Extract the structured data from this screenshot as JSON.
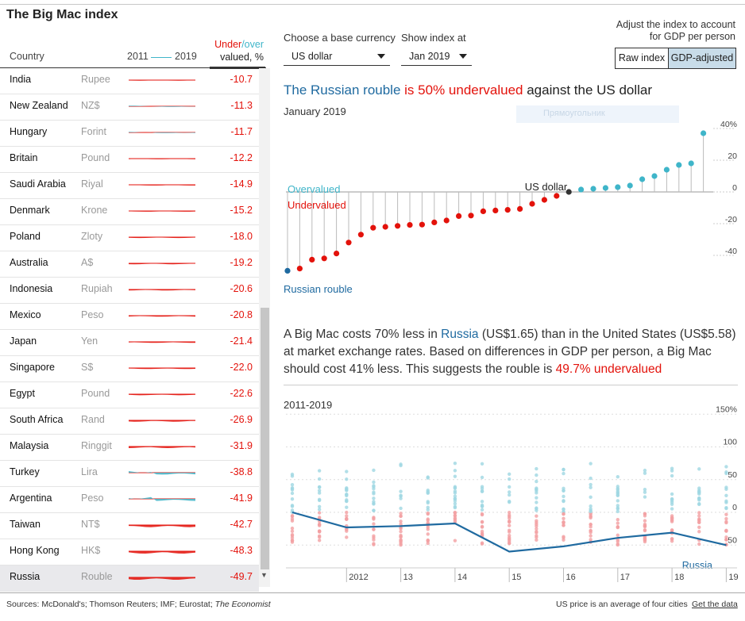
{
  "title": "The Big Mac index",
  "table": {
    "col_country": "Country",
    "col_years": [
      "2011",
      "2019"
    ],
    "col_under": "Under",
    "col_slash": "/",
    "col_over": "over",
    "col_valued": "valued, %",
    "rows": [
      {
        "country": "India",
        "currency": "Rupee",
        "value": "-10.7"
      },
      {
        "country": "New Zealand",
        "currency": "NZ$",
        "value": "-11.3"
      },
      {
        "country": "Hungary",
        "currency": "Forint",
        "value": "-11.7"
      },
      {
        "country": "Britain",
        "currency": "Pound",
        "value": "-12.2"
      },
      {
        "country": "Saudi Arabia",
        "currency": "Riyal",
        "value": "-14.9"
      },
      {
        "country": "Denmark",
        "currency": "Krone",
        "value": "-15.2"
      },
      {
        "country": "Poland",
        "currency": "Zloty",
        "value": "-18.0"
      },
      {
        "country": "Australia",
        "currency": "A$",
        "value": "-19.2"
      },
      {
        "country": "Indonesia",
        "currency": "Rupiah",
        "value": "-20.6"
      },
      {
        "country": "Mexico",
        "currency": "Peso",
        "value": "-20.8"
      },
      {
        "country": "Japan",
        "currency": "Yen",
        "value": "-21.4"
      },
      {
        "country": "Singapore",
        "currency": "S$",
        "value": "-22.0"
      },
      {
        "country": "Egypt",
        "currency": "Pound",
        "value": "-22.6"
      },
      {
        "country": "South Africa",
        "currency": "Rand",
        "value": "-26.9"
      },
      {
        "country": "Malaysia",
        "currency": "Ringgit",
        "value": "-31.9"
      },
      {
        "country": "Turkey",
        "currency": "Lira",
        "value": "-38.8"
      },
      {
        "country": "Argentina",
        "currency": "Peso",
        "value": "-41.9"
      },
      {
        "country": "Taiwan",
        "currency": "NT$",
        "value": "-42.7"
      },
      {
        "country": "Hong Kong",
        "currency": "HK$",
        "value": "-48.3"
      },
      {
        "country": "Russia",
        "currency": "Rouble",
        "value": "-49.7"
      }
    ]
  },
  "controls": {
    "base_currency_label": "Choose a base currency",
    "base_currency_value": "US dollar",
    "show_index_label": "Show index at",
    "show_index_value": "Jan 2019",
    "adjust_label": "Adjust the index to account for GDP per person",
    "toggle_raw": "Raw index",
    "toggle_gdp": "GDP-adjusted"
  },
  "headline": {
    "part1": "The Russian rouble",
    "part2": "is 50% undervalued",
    "part3": "against the US dollar"
  },
  "subdate": "January 2019",
  "ghost_label": "Прямоугольник",
  "description": {
    "p1": "A Big Mac costs 70% less in",
    "russia": "Russia",
    "p2": "(US$1.65) than in the United States (US$5.58) at market exchange rates. Based on differences in GDP per person, a Big Mac should cost 41% less. This suggests the rouble is",
    "red": "49.7% undervalued"
  },
  "range_label": "2011-2019",
  "footer": {
    "sources": "Sources: McDonald's; Thomson Reuters; IMF; Eurostat;",
    "economist": "The Economist",
    "note": "US price is an average of four cities",
    "get_data": "Get the data"
  },
  "colors": {
    "over": "#3fb5c9",
    "under": "#e3120b",
    "russia": "#1f6aa0",
    "base": "#333333"
  },
  "chart_data": [
    {
      "type": "scatter",
      "labels": {
        "overvalued": "Overvalued",
        "undervalued": "Undervalued",
        "base": "US dollar",
        "highlight": "Russian rouble"
      },
      "y_ticks": [
        "40%",
        "20",
        "0",
        "-20",
        "-40"
      ],
      "ylim": [
        -52,
        42
      ],
      "values": [
        -49.7,
        -48.3,
        -42.7,
        -41.9,
        -38.8,
        -31.9,
        -26.9,
        -22.6,
        -22.0,
        -21.4,
        -20.8,
        -20.6,
        -19.2,
        -18.0,
        -15.2,
        -14.9,
        -12.2,
        -11.7,
        -11.3,
        -10.7,
        -7.5,
        -5.0,
        -2.5,
        0,
        1.5,
        2.0,
        2.5,
        3.0,
        4.0,
        8.0,
        10.0,
        14.0,
        17.0,
        18.0,
        37.0
      ],
      "base_index": 23
    },
    {
      "type": "line",
      "x_ticks": [
        "2012",
        "13",
        "14",
        "15",
        "16",
        "17",
        "18",
        "19"
      ],
      "y_ticks": [
        "150%",
        "100",
        "50",
        "0",
        "-50"
      ],
      "ylim": [
        -80,
        152
      ],
      "series": [
        {
          "name": "Russia",
          "x": [
            2011,
            2012,
            2013,
            2014,
            2015,
            2016,
            2017,
            2018,
            2019
          ],
          "values": [
            0,
            -23,
            -21,
            -17,
            -60,
            -52,
            -39,
            -31,
            -50
          ]
        }
      ]
    }
  ]
}
